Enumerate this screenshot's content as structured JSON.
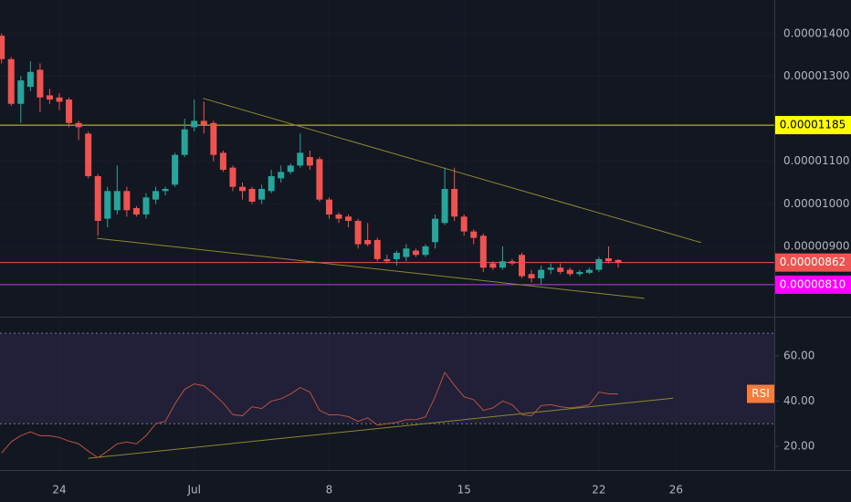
{
  "chart_data": {
    "type": "candlestick",
    "up_color": "#26a69a",
    "down_color": "#ef5350",
    "open": [
      1.395e-05,
      1.34e-05,
      1.235e-05,
      1.275e-05,
      1.315e-05,
      1.255e-05,
      1.25e-05,
      1.245e-05,
      1.19e-05,
      1.165e-05,
      1.065e-05,
      9.65e-06,
      9.85e-06,
      1.03e-05,
      9.9e-06,
      9.75e-06,
      1.01e-05,
      1.03e-05,
      1.045e-05,
      1.115e-05,
      1.18e-05,
      1.195e-05,
      1.19e-05,
      1.12e-05,
      1.085e-05,
      1.04e-05,
      1.035e-05,
      1.01e-05,
      1.03e-05,
      1.06e-05,
      1.075e-05,
      1.09e-05,
      1.11e-05,
      1.105e-05,
      1.01e-05,
      9.75e-06,
      9.7e-06,
      9.6e-06,
      9.15e-06,
      9.15e-06,
      8.7e-06,
      8.7e-06,
      8.75e-06,
      8.9e-06,
      8.8e-06,
      9.1e-06,
      9.55e-06,
      1.035e-05,
      9.7e-06,
      9.35e-06,
      9.25e-06,
      8.6e-06,
      8.5e-06,
      8.65e-06,
      8.8e-06,
      8.35e-06,
      8.25e-06,
      8.45e-06,
      8.5e-06,
      8.45e-06,
      8.35e-06,
      8.38e-06,
      8.45e-06,
      8.72e-06,
      8.68e-06
    ],
    "high": [
      1.4e-05,
      1.345e-05,
      1.3e-05,
      1.335e-05,
      1.33e-05,
      1.27e-05,
      1.26e-05,
      1.25e-05,
      1.195e-05,
      1.17e-05,
      1.07e-05,
      1.04e-05,
      1.09e-05,
      1.04e-05,
      9.95e-06,
      1.025e-05,
      1.04e-05,
      1.04e-05,
      1.12e-05,
      1.2e-05,
      1.245e-05,
      1.24e-05,
      1.195e-05,
      1.125e-05,
      1.09e-05,
      1.05e-05,
      1.04e-05,
      1.045e-05,
      1.08e-05,
      1.09e-05,
      1.095e-05,
      1.165e-05,
      1.125e-05,
      1.11e-05,
      1.015e-05,
      9.8e-06,
      9.75e-06,
      9.65e-06,
      9.55e-06,
      9.2e-06,
      8.8e-06,
      8.9e-06,
      9.05e-06,
      8.95e-06,
      9.05e-06,
      9.75e-06,
      1.085e-05,
      1.085e-05,
      9.75e-06,
      9.4e-06,
      9.3e-06,
      8.65e-06,
      9e-06,
      8.7e-06,
      8.85e-06,
      8.45e-06,
      8.55e-06,
      8.6e-06,
      8.6e-06,
      8.5e-06,
      8.45e-06,
      8.5e-06,
      8.75e-06,
      9e-06,
      8.7e-06
    ],
    "low": [
      1.33e-05,
      1.23e-05,
      1.19e-05,
      1.265e-05,
      1.215e-05,
      1.235e-05,
      1.22e-05,
      1.18e-05,
      1.15e-05,
      1.06e-05,
      9.25e-06,
      9.45e-06,
      9.75e-06,
      9.7e-06,
      9.7e-06,
      9.65e-06,
      1e-05,
      1.02e-05,
      1.04e-05,
      1.11e-05,
      1.17e-05,
      1.165e-05,
      1.1e-05,
      1.075e-05,
      1.03e-05,
      1.01e-05,
      1e-05,
      1e-05,
      1.025e-05,
      1.05e-05,
      1.07e-05,
      1.085e-05,
      1.08e-05,
      1.005e-05,
      9.65e-06,
      9.55e-06,
      9.45e-06,
      8.95e-06,
      9e-06,
      8.65e-06,
      8.6e-06,
      8.55e-06,
      8.65e-06,
      8.75e-06,
      8.75e-06,
      8.95e-06,
      9.5e-06,
      9.6e-06,
      9.25e-06,
      9.05e-06,
      8.4e-06,
      8.45e-06,
      8.45e-06,
      8.55e-06,
      8.25e-06,
      8.15e-06,
      8.1e-06,
      8.35e-06,
      8.35e-06,
      8.3e-06,
      8.3e-06,
      8.35e-06,
      8.4e-06,
      8.6e-06,
      8.5e-06
    ],
    "close": [
      1.34e-05,
      1.235e-05,
      1.29e-05,
      1.31e-05,
      1.25e-05,
      1.245e-05,
      1.24e-05,
      1.19e-05,
      1.18e-05,
      1.065e-05,
      9.6e-06,
      1.03e-05,
      1.03e-05,
      9.85e-06,
      9.75e-06,
      1.015e-05,
      1.03e-05,
      1.035e-05,
      1.115e-05,
      1.175e-05,
      1.195e-05,
      1.185e-05,
      1.115e-05,
      1.08e-05,
      1.04e-05,
      1.03e-05,
      1.005e-05,
      1.035e-05,
      1.065e-05,
      1.075e-05,
      1.09e-05,
      1.12e-05,
      1.09e-05,
      1.01e-05,
      9.75e-06,
      9.65e-06,
      9.6e-06,
      9.05e-06,
      9.05e-06,
      8.7e-06,
      8.65e-06,
      8.85e-06,
      8.95e-06,
      8.8e-06,
      9e-06,
      9.65e-06,
      1.035e-05,
      9.7e-06,
      9.35e-06,
      9.2e-06,
      8.5e-06,
      8.5e-06,
      8.65e-06,
      8.6e-06,
      8.3e-06,
      8.25e-06,
      8.45e-06,
      8.5e-06,
      8.4e-06,
      8.35e-06,
      8.4e-06,
      8.45e-06,
      8.7e-06,
      8.65e-06,
      8.62e-06
    ],
    "ylim": [
      7.39e-06,
      1.479e-05
    ],
    "yticks": [
      {
        "value": 1.4e-05,
        "label": "0.00001400"
      },
      {
        "value": 1.3e-05,
        "label": "0.00001300"
      },
      {
        "value": 1.1e-05,
        "label": "0.00001100"
      },
      {
        "value": 1e-05,
        "label": "0.00001000"
      },
      {
        "value": 9e-06,
        "label": "0.00000900"
      }
    ],
    "xlim": [
      -0.16,
      80.2
    ],
    "xticks": [
      {
        "value": 6,
        "label": "24"
      },
      {
        "value": 20,
        "label": "Jul"
      },
      {
        "value": 34,
        "label": "8"
      },
      {
        "value": 48,
        "label": "15"
      },
      {
        "value": 62,
        "label": "22"
      },
      {
        "value": 70,
        "label": "26"
      }
    ],
    "price_lines": [
      {
        "value": 1.185e-05,
        "label": "0.00001185",
        "color": "#d4d42a",
        "badge": "#ffff00",
        "text_color": "#000000"
      },
      {
        "value": 8.62e-06,
        "label": "0.00000862",
        "color": "#ef5350",
        "badge": "#ef5350",
        "text_color": "#ffffff"
      },
      {
        "value": 8.1e-06,
        "label": "0.00000810",
        "color": "#c040e0",
        "badge": "#ff00ff",
        "text_color": "#ffffff"
      }
    ],
    "trendlines": [
      {
        "x": [
          20.9,
          72.6
        ],
        "y": [
          1.248e-05,
          9.09e-06
        ],
        "color": "#8a8a2e"
      },
      {
        "x": [
          9.9,
          66.7
        ],
        "y": [
          9.19e-06,
          7.78e-06
        ],
        "color": "#8a8a2e"
      }
    ],
    "rsi": {
      "type": "line",
      "label": "RSI",
      "color": "#b5533f",
      "badge": "#f57c3b",
      "values": [
        17,
        22,
        24.7,
        26.4,
        24.7,
        24.7,
        23.9,
        22.3,
        21.1,
        17.9,
        15,
        17.9,
        21.1,
        21.9,
        21.1,
        24.7,
        30,
        31,
        38.8,
        45.2,
        47.6,
        46.8,
        43.2,
        39.2,
        34,
        33.5,
        37.5,
        36.7,
        40,
        41,
        43.2,
        46,
        44,
        35.9,
        33.9,
        33.9,
        33.1,
        31,
        32.6,
        29.4,
        30,
        30.6,
        31.8,
        31.8,
        33,
        41.9,
        52.7,
        47,
        41.9,
        40.6,
        35.9,
        37,
        40,
        38.4,
        34,
        33.5,
        38,
        38.4,
        37.5,
        37,
        37.5,
        38.4,
        44,
        43.2,
        43.2
      ],
      "ylim": [
        9.5,
        76.1
      ],
      "yticks": [
        {
          "value": 60,
          "label": "60.00"
        },
        {
          "value": 40,
          "label": "40.00"
        },
        {
          "value": 20,
          "label": "20.00"
        }
      ],
      "band": [
        30,
        70
      ],
      "trendline": {
        "x": [
          9.0,
          69.7
        ],
        "y": [
          14.7,
          41.3
        ],
        "color": "#8a8a2e"
      }
    }
  }
}
